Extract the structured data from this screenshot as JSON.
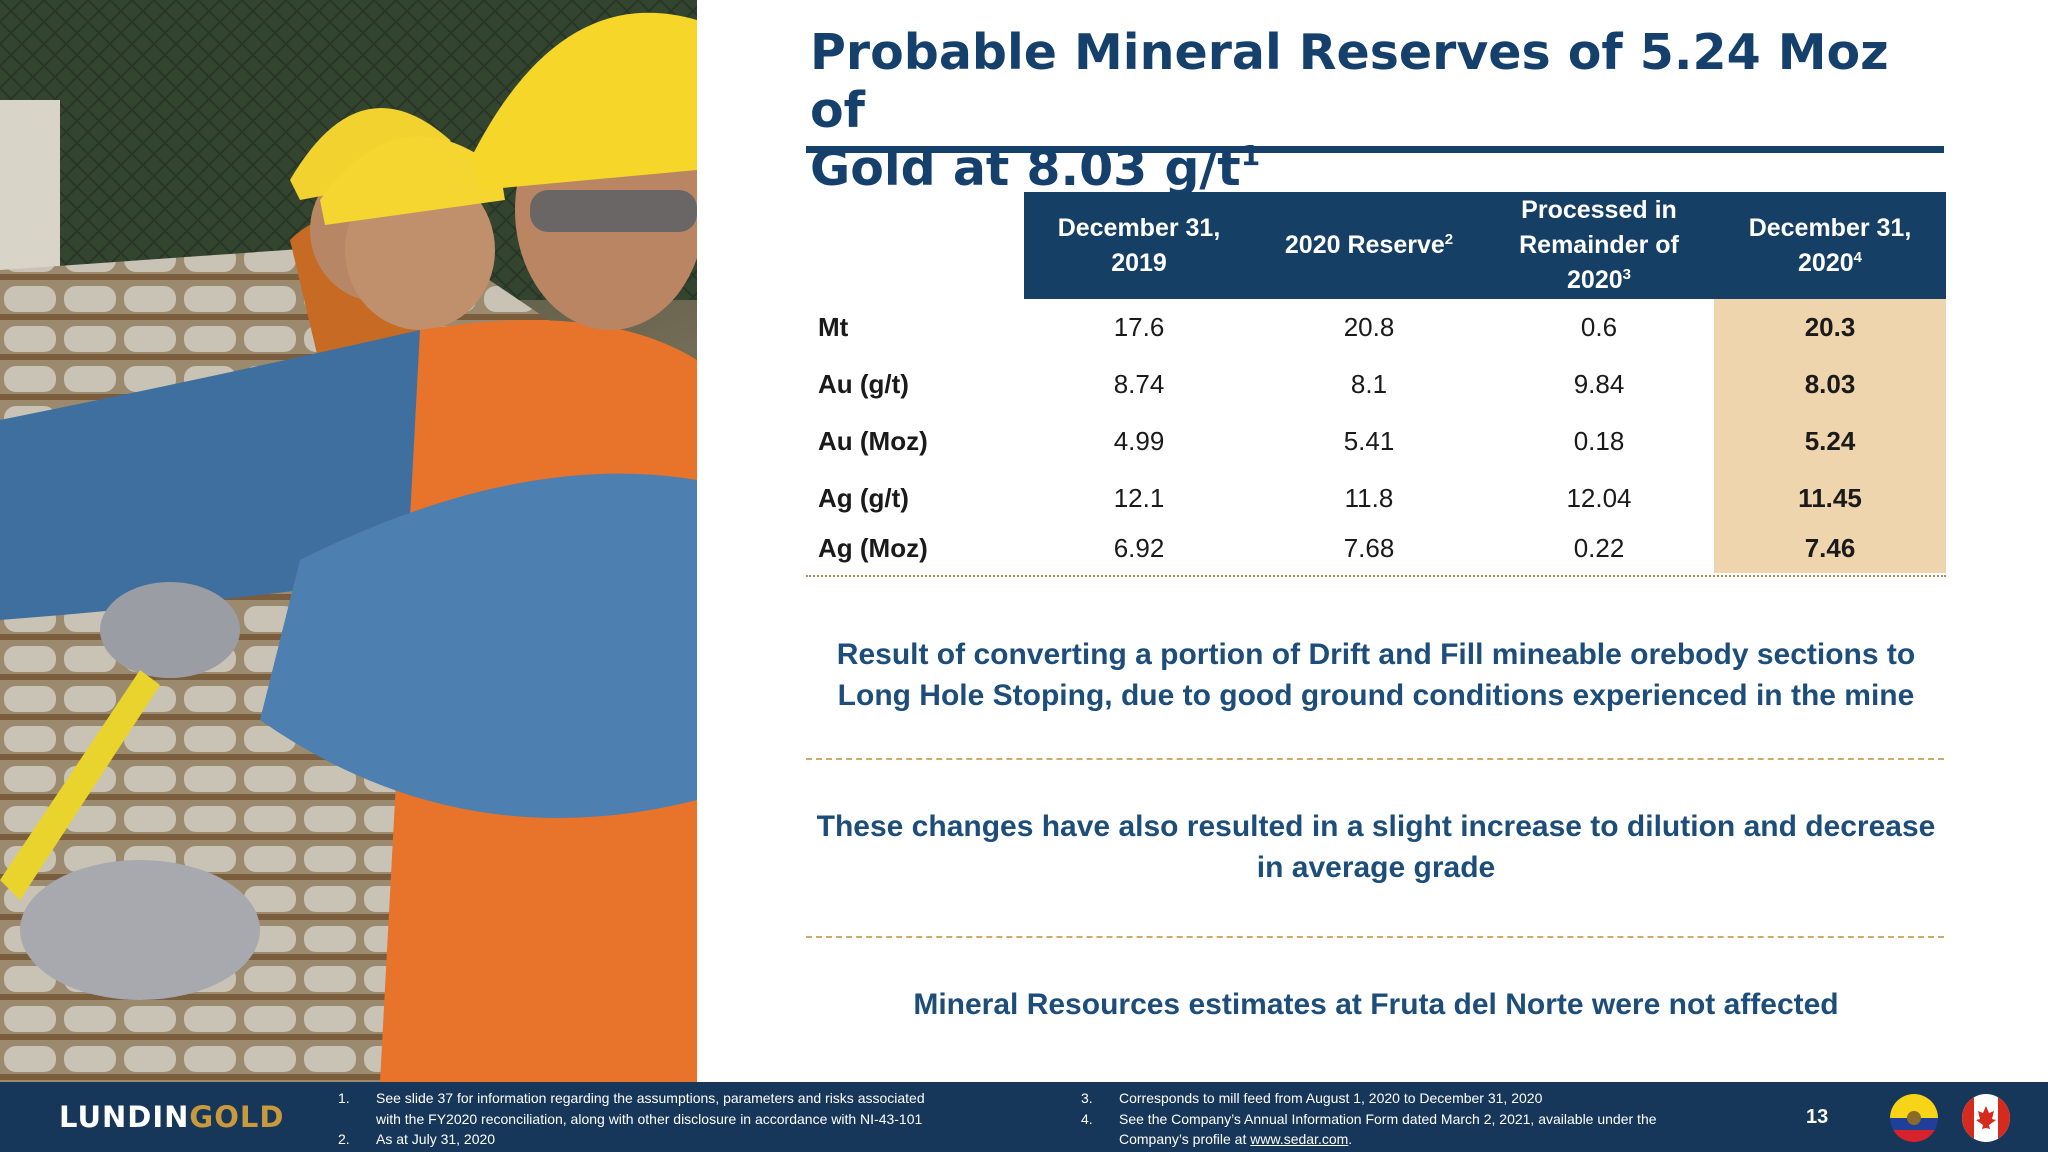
{
  "title": {
    "line1": "Probable Mineral Reserves of 5.24 Moz of",
    "line2": "Gold at 8.03 g/t",
    "sup": "1"
  },
  "table": {
    "headers": [
      {
        "text": "December 31, 2019",
        "sup": ""
      },
      {
        "text": "2020 Reserve",
        "sup": "2"
      },
      {
        "text": "Processed in Remainder of 2020",
        "sup": "3"
      },
      {
        "text": "December 31, 2020",
        "sup": "4"
      }
    ],
    "rows": [
      {
        "label": "Mt",
        "values": [
          "17.6",
          "20.8",
          "0.6",
          "20.3"
        ]
      },
      {
        "label": "Au (g/t)",
        "values": [
          "8.74",
          "8.1",
          "9.84",
          "8.03"
        ]
      },
      {
        "label": "Au (Moz)",
        "values": [
          "4.99",
          "5.41",
          "0.18",
          "5.24"
        ]
      },
      {
        "label": "Ag (g/t)",
        "values": [
          "12.1",
          "11.8",
          "12.04",
          "11.45"
        ]
      },
      {
        "label": "Ag (Moz)",
        "values": [
          "6.92",
          "7.68",
          "0.22",
          "7.46"
        ]
      }
    ],
    "highlight_color": "#efd5ad",
    "header_color": "#163f66"
  },
  "notes": [
    "Result of converting a portion of Drift and Fill mineable orebody sections to Long Hole Stoping, due to good ground conditions experienced in the mine",
    "These changes have also resulted in a slight increase to dilution and decrease in average grade",
    "Mineral Resources estimates at Fruta del Norte were not affected"
  ],
  "footer": {
    "logo_part1": "LUNDIN",
    "logo_part2": "GOLD",
    "footnotes_left": [
      {
        "num": "1.",
        "line1": "See slide 37 for information regarding the assumptions, parameters and risks associated",
        "line2": "with the FY2020 reconciliation, along with other disclosure in accordance with NI-43-101"
      },
      {
        "num": "2.",
        "line1": "As at July 31, 2020"
      }
    ],
    "footnotes_right": [
      {
        "num": "3.",
        "line1": "Corresponds to mill feed from August 1, 2020 to December 31, 2020"
      },
      {
        "num": "4.",
        "line1": "See the Company’s Annual Information Form dated March 2, 2021, available under the",
        "line2_prefix": "Company’s profile at ",
        "link": "www.sedar.com",
        "line2_suffix": "."
      }
    ],
    "page_number": "13",
    "flag_icons": [
      "ecuador-flag-icon",
      "canada-flag-icon"
    ]
  }
}
